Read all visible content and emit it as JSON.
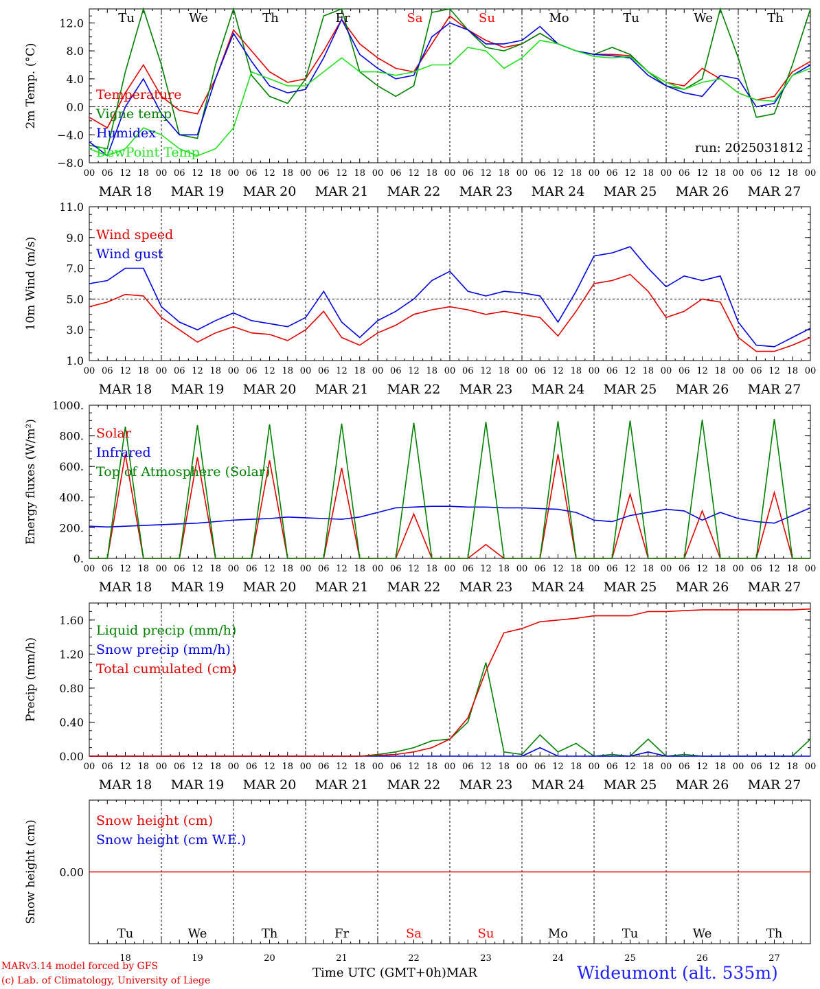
{
  "colors": {
    "red": "#e00000",
    "green": "#008000",
    "blue": "#0000e0",
    "lightgreen": "#20e020",
    "axis": "#000000",
    "weekend": "#ff0000"
  },
  "days": [
    "Tu",
    "We",
    "Th",
    "Fr",
    "Sa",
    "Su",
    "Mo",
    "Tu",
    "We",
    "Th"
  ],
  "weekend_days": [
    4,
    5
  ],
  "dates": [
    "MAR 18",
    "MAR 19",
    "MAR 20",
    "MAR 21",
    "MAR 22",
    "MAR 23",
    "MAR 24",
    "MAR 25",
    "MAR 26",
    "MAR 27"
  ],
  "day_numbers": [
    "18",
    "19",
    "20",
    "21",
    "22",
    "23",
    "24",
    "25",
    "26",
    "27"
  ],
  "hour_ticks": [
    "00",
    "06",
    "12",
    "18"
  ],
  "hour_end": "00",
  "run_label": "run: 2025031812",
  "footer": {
    "model_line": "MARv3.14 model forced by GFS",
    "credit_line": "(c) Lab. of Climatology, University of Liege",
    "xlabel": "Time UTC (GMT+0h)",
    "month": "MAR",
    "station": "Wideumont (alt. 535m)"
  },
  "chart_data": [
    {
      "type": "line",
      "ylabel": "2m Temp. (°C)",
      "ylim": [
        -8,
        14
      ],
      "yticks": [
        -8,
        -4,
        0,
        4,
        8,
        12
      ],
      "ytick_labels": [
        "−8.0",
        "−4.0",
        "0.0",
        "4.0",
        "8.0",
        "12.0"
      ],
      "ref_line": 0,
      "x_hours": [
        0,
        6,
        12,
        18,
        24,
        30,
        36,
        42,
        48,
        54,
        60,
        66,
        72,
        78,
        84,
        90,
        96,
        102,
        108,
        114,
        120,
        126,
        132,
        138,
        144,
        150,
        156,
        162,
        168,
        174,
        180,
        186,
        192,
        198,
        204,
        210,
        216,
        222,
        228,
        234,
        240
      ],
      "series": [
        {
          "name": "Temperature",
          "color": "red",
          "values": [
            -1.5,
            -3,
            2,
            6,
            1.5,
            -0.5,
            -1,
            4,
            11,
            8,
            5,
            3.5,
            4,
            8,
            12.5,
            9,
            7,
            5.5,
            5,
            9,
            13,
            11,
            9.5,
            8.5,
            9,
            10.5,
            9,
            8,
            7.5,
            7.5,
            7.3,
            5,
            3.5,
            3,
            5.5,
            4,
            2,
            1,
            1.5,
            5,
            6.5
          ]
        },
        {
          "name": "Vigne temp",
          "color": "green",
          "values": [
            -5.5,
            -6,
            5,
            14,
            6,
            -4,
            -4.5,
            6,
            14,
            4.5,
            1.5,
            0.5,
            4,
            13,
            14,
            5,
            3,
            1.5,
            3,
            13.5,
            14,
            11,
            8.5,
            8,
            9,
            10.5,
            9,
            8,
            7.5,
            8.5,
            7.5,
            5,
            3,
            2.5,
            4,
            14,
            7,
            -1.5,
            -1,
            6,
            14
          ]
        },
        {
          "name": "Humidex",
          "color": "blue",
          "values": [
            -5,
            -7,
            0,
            4,
            -1,
            -4,
            -4,
            4,
            10.5,
            6.5,
            3,
            2,
            2.5,
            7,
            12.5,
            7.5,
            5.5,
            4,
            4.5,
            10,
            12,
            11,
            9,
            9,
            9.5,
            11.5,
            9,
            8,
            7.5,
            7.3,
            7,
            4.5,
            3,
            2,
            1.5,
            4.5,
            4,
            0,
            0.5,
            4.5,
            6
          ]
        },
        {
          "name": "DewPoint Temp",
          "color": "lightgreen",
          "values": [
            -6,
            -7,
            -6,
            -3,
            -4,
            -6,
            -7,
            -6,
            -3,
            5,
            4,
            3,
            3,
            5,
            7,
            5,
            5,
            4.5,
            5,
            6,
            6,
            8.5,
            8,
            5.5,
            7,
            9.5,
            9,
            8,
            7.2,
            7,
            7.2,
            5,
            3.5,
            2.5,
            3.5,
            4,
            2,
            1,
            0.8,
            4.5,
            5.5
          ]
        }
      ]
    },
    {
      "type": "line",
      "ylabel": "10m Wind (m/s)",
      "ylim": [
        1,
        11
      ],
      "yticks": [
        1,
        3,
        5,
        7,
        9,
        11
      ],
      "ytick_labels": [
        "1.0",
        "3.0",
        "5.0",
        "7.0",
        "9.0",
        "11.0"
      ],
      "ref_line": 5,
      "x_hours": [
        0,
        6,
        12,
        18,
        24,
        30,
        36,
        42,
        48,
        54,
        60,
        66,
        72,
        78,
        84,
        90,
        96,
        102,
        108,
        114,
        120,
        126,
        132,
        138,
        144,
        150,
        156,
        162,
        168,
        174,
        180,
        186,
        192,
        198,
        204,
        210,
        216,
        222,
        228,
        234,
        240
      ],
      "series": [
        {
          "name": "Wind speed",
          "color": "red",
          "values": [
            4.5,
            4.8,
            5.3,
            5.2,
            3.8,
            3,
            2.2,
            2.8,
            3.2,
            2.8,
            2.7,
            2.3,
            3,
            4.2,
            2.5,
            2,
            2.8,
            3.3,
            4,
            4.3,
            4.5,
            4.3,
            4,
            4.2,
            4,
            3.8,
            2.6,
            4.2,
            6,
            6.2,
            6.6,
            5.5,
            3.8,
            4.2,
            5,
            4.8,
            2.5,
            1.6,
            1.6,
            2,
            2.5
          ]
        },
        {
          "name": "Wind gust",
          "color": "blue",
          "values": [
            6,
            6.2,
            7,
            7,
            4.5,
            3.5,
            3,
            3.6,
            4.1,
            3.6,
            3.4,
            3.2,
            3.8,
            5.5,
            3.5,
            2.5,
            3.6,
            4.2,
            5,
            6.2,
            6.8,
            5.5,
            5.2,
            5.5,
            5.4,
            5.2,
            3.5,
            5.5,
            7.8,
            8,
            8.4,
            7,
            5.8,
            6.5,
            6.2,
            6.5,
            3.5,
            2,
            1.9,
            2.5,
            3.1
          ]
        }
      ]
    },
    {
      "type": "line",
      "ylabel": "Energy fluxes (W/m²)",
      "ylim": [
        0,
        1000
      ],
      "yticks": [
        0,
        200,
        400,
        600,
        800,
        1000
      ],
      "ytick_labels": [
        "0.",
        "200.",
        "400.",
        "600.",
        "800.",
        "1000."
      ],
      "ref_line": null,
      "x_hours": [
        0,
        6,
        12,
        18,
        24,
        30,
        36,
        42,
        48,
        54,
        60,
        66,
        72,
        78,
        84,
        90,
        96,
        102,
        108,
        114,
        120,
        126,
        132,
        138,
        144,
        150,
        156,
        162,
        168,
        174,
        180,
        186,
        192,
        198,
        204,
        210,
        216,
        222,
        228,
        234,
        240
      ],
      "series": [
        {
          "name": "Solar",
          "color": "red",
          "values": [
            0,
            0,
            680,
            0,
            0,
            0,
            660,
            0,
            0,
            0,
            640,
            0,
            0,
            0,
            590,
            0,
            0,
            0,
            290,
            0,
            0,
            0,
            90,
            0,
            0,
            0,
            680,
            0,
            0,
            0,
            420,
            0,
            0,
            0,
            310,
            0,
            0,
            0,
            430,
            0,
            0
          ]
        },
        {
          "name": "Infrared",
          "color": "blue",
          "values": [
            210,
            205,
            210,
            215,
            220,
            225,
            230,
            240,
            250,
            255,
            260,
            270,
            265,
            260,
            255,
            270,
            300,
            330,
            335,
            340,
            340,
            335,
            335,
            330,
            330,
            325,
            320,
            300,
            250,
            240,
            280,
            300,
            320,
            310,
            250,
            300,
            260,
            240,
            230,
            280,
            330
          ]
        },
        {
          "name": "Top of Atmosphere (Solar)",
          "color": "green",
          "values": [
            0,
            0,
            860,
            0,
            0,
            0,
            870,
            0,
            0,
            0,
            875,
            0,
            0,
            0,
            880,
            0,
            0,
            0,
            885,
            0,
            0,
            0,
            890,
            0,
            0,
            0,
            895,
            0,
            0,
            0,
            900,
            0,
            0,
            0,
            905,
            0,
            0,
            0,
            910,
            0,
            0
          ]
        }
      ]
    },
    {
      "type": "line",
      "ylabel": "Precip (mm/h)",
      "ylim": [
        0,
        1.8
      ],
      "yticks": [
        0,
        0.4,
        0.8,
        1.2,
        1.6
      ],
      "ytick_labels": [
        "0.00",
        "0.40",
        "0.80",
        "1.20",
        "1.60"
      ],
      "ref_line": null,
      "x_hours": [
        0,
        6,
        12,
        18,
        24,
        30,
        36,
        42,
        48,
        54,
        60,
        66,
        72,
        78,
        84,
        90,
        96,
        102,
        108,
        114,
        120,
        126,
        132,
        138,
        144,
        150,
        156,
        162,
        168,
        174,
        180,
        186,
        192,
        198,
        204,
        210,
        216,
        222,
        228,
        234,
        240
      ],
      "series": [
        {
          "name": "Liquid precip (mm/h)",
          "color": "green",
          "values": [
            0,
            0,
            0,
            0,
            0,
            0,
            0,
            0,
            0,
            0,
            0,
            0,
            0,
            0,
            0,
            0,
            0.02,
            0.05,
            0.1,
            0.18,
            0.2,
            0.4,
            1.1,
            0.05,
            0.02,
            0.25,
            0.05,
            0.15,
            0,
            0.02,
            0,
            0.2,
            0,
            0.02,
            0,
            0,
            0,
            0,
            0,
            0,
            0.2
          ]
        },
        {
          "name": "Snow precip (mm/h)",
          "color": "blue",
          "values": [
            0,
            0,
            0,
            0,
            0,
            0,
            0,
            0,
            0,
            0,
            0,
            0,
            0,
            0,
            0,
            0,
            0,
            0,
            0,
            0,
            0,
            0,
            0,
            0,
            0,
            0.1,
            0,
            0,
            0,
            0,
            0,
            0.05,
            0,
            0,
            0,
            0,
            0,
            0,
            0,
            0,
            0
          ]
        },
        {
          "name": "Total cumulated (cm)",
          "color": "red",
          "values": [
            0,
            0,
            0,
            0,
            0,
            0,
            0,
            0,
            0,
            0,
            0,
            0,
            0,
            0,
            0,
            0,
            0.01,
            0.02,
            0.05,
            0.1,
            0.2,
            0.45,
            1.0,
            1.45,
            1.5,
            1.58,
            1.6,
            1.62,
            1.65,
            1.65,
            1.65,
            1.7,
            1.7,
            1.71,
            1.72,
            1.72,
            1.72,
            1.72,
            1.72,
            1.72,
            1.73
          ]
        }
      ]
    },
    {
      "type": "line",
      "ylabel": "Snow height (cm)",
      "ylim": [
        -1,
        1
      ],
      "yticks": [
        0
      ],
      "ytick_labels": [
        "0.00"
      ],
      "ref_line": null,
      "x_hours": [
        0,
        240
      ],
      "series": [
        {
          "name": "Snow height (cm)",
          "color": "red",
          "values": [
            0,
            0
          ]
        },
        {
          "name": "Snow height (cm W.E.)",
          "color": "blue",
          "values": null
        }
      ]
    }
  ]
}
